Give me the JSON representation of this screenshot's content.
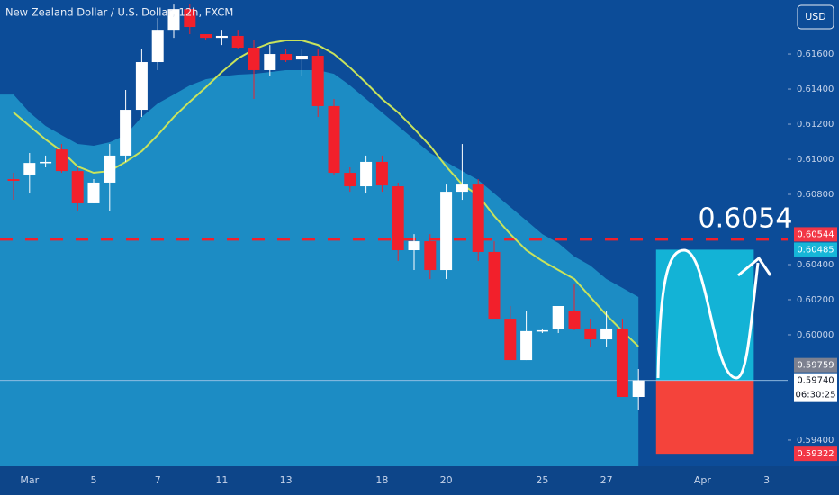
{
  "chart_data": {
    "type": "candlestick",
    "title": "New Zealand Dollar / U.S. Dollar, 12h, FXCM",
    "currency_button": "USD",
    "categories": [
      null,
      "Mar",
      null,
      null,
      null,
      "5",
      null,
      null,
      null,
      "7",
      null,
      null,
      null,
      "11",
      null,
      null,
      null,
      "13",
      null,
      null,
      null,
      null,
      null,
      "18",
      null,
      null,
      null,
      "20",
      null,
      null,
      null,
      null,
      null,
      "25",
      null,
      null,
      null,
      "27",
      null,
      null,
      null,
      null,
      null,
      "Apr",
      null,
      null,
      null,
      "3",
      null
    ],
    "open": [
      0.60887,
      0.60913,
      0.60979,
      0.61056,
      0.60933,
      0.60749,
      0.60867,
      0.61021,
      0.61282,
      0.61554,
      0.61738,
      0.61856,
      0.61713,
      0.61692,
      0.61703,
      0.61636,
      0.61508,
      0.616,
      0.61569,
      0.6159,
      0.61303,
      0.60923,
      0.60846,
      0.60985,
      0.60846,
      0.60482,
      0.60533,
      0.60369,
      0.60815,
      0.60856,
      0.60472,
      0.60092,
      0.59856,
      0.60021,
      0.60031,
      0.60138,
      0.60036,
      0.59974,
      0.60036,
      0.59646,
      null,
      null,
      null,
      null,
      null,
      null,
      null,
      null,
      null
    ],
    "high": [
      0.60923,
      0.61036,
      0.61021,
      0.61087,
      0.60954,
      0.60887,
      0.61087,
      0.61395,
      0.61626,
      0.61805,
      0.61882,
      0.61882,
      0.61713,
      0.61738,
      0.61738,
      0.61677,
      0.61651,
      0.61626,
      0.61626,
      0.61626,
      0.61344,
      0.60954,
      0.61021,
      0.61021,
      0.60867,
      0.60574,
      0.60574,
      0.60856,
      0.61087,
      0.60887,
      0.60533,
      0.60164,
      0.60138,
      0.60036,
      0.60164,
      0.60292,
      0.60092,
      0.60138,
      0.60092,
      0.59805,
      null,
      null,
      null,
      null,
      null,
      null,
      null,
      null,
      null
    ],
    "low": [
      0.60769,
      0.60805,
      0.60954,
      0.60923,
      0.60703,
      0.60749,
      0.60703,
      0.60985,
      0.61241,
      0.61508,
      0.61692,
      0.61713,
      0.61677,
      0.61651,
      0.61626,
      0.61344,
      0.61472,
      0.61554,
      0.61472,
      0.61241,
      0.60913,
      0.60815,
      0.60805,
      0.60815,
      0.60421,
      0.60369,
      0.60318,
      0.60318,
      0.60769,
      0.60421,
      0.60092,
      0.59856,
      0.59856,
      0.6001,
      0.6001,
      0.60026,
      0.59933,
      0.59933,
      0.59646,
      0.59574,
      null,
      null,
      null,
      null,
      null,
      null,
      null,
      null,
      null
    ],
    "close": [
      0.60877,
      0.60979,
      0.60985,
      0.60933,
      0.60749,
      0.60867,
      0.61021,
      0.61282,
      0.61554,
      0.61738,
      0.61856,
      0.61754,
      0.61692,
      0.61703,
      0.61636,
      0.61508,
      0.616,
      0.61564,
      0.6159,
      0.61303,
      0.60923,
      0.60846,
      0.60985,
      0.60851,
      0.60482,
      0.60533,
      0.60369,
      0.60815,
      0.60856,
      0.60472,
      0.60092,
      0.59856,
      0.60021,
      0.60026,
      0.60164,
      0.60031,
      0.59974,
      0.60036,
      0.59646,
      0.5974,
      null,
      null,
      null,
      null,
      null,
      null,
      null,
      null,
      null
    ],
    "up_color": "#ffffff",
    "down_color": "#f2202b",
    "overlays": [
      {
        "kind": "area",
        "color": "#1c8cc4",
        "values": [
          0.61369,
          0.61267,
          0.6119,
          0.61138,
          0.61087,
          0.61077,
          0.61097,
          0.61138,
          0.61241,
          0.61318,
          0.61369,
          0.61421,
          0.61456,
          0.61472,
          0.61482,
          0.61487,
          0.61497,
          0.61508,
          0.61508,
          0.61508,
          0.61487,
          0.61421,
          0.61344,
          0.61267,
          0.6119,
          0.61113,
          0.61036,
          0.60985,
          0.60933,
          0.60882,
          0.60805,
          0.60728,
          0.60651,
          0.60574,
          0.60523,
          0.60446,
          0.60395,
          0.60318,
          0.60267,
          0.60215,
          null,
          null,
          null,
          null,
          null,
          null,
          null,
          null,
          null
        ]
      },
      {
        "kind": "line",
        "color": "#c8e35c",
        "values": [
          0.61267,
          0.6119,
          0.61113,
          0.61046,
          0.60959,
          0.60923,
          0.60933,
          0.60985,
          0.61046,
          0.61138,
          0.61241,
          0.61328,
          0.6141,
          0.61497,
          0.61574,
          0.61626,
          0.61662,
          0.61677,
          0.61677,
          0.61651,
          0.616,
          0.61523,
          0.61436,
          0.61344,
          0.61267,
          0.61174,
          0.61077,
          0.60959,
          0.60856,
          0.60795,
          0.60677,
          0.60574,
          0.60482,
          0.60421,
          0.60369,
          0.60318,
          0.60215,
          0.60113,
          0.60021,
          0.59934,
          null,
          null,
          null,
          null,
          null,
          null,
          null,
          null,
          null
        ]
      }
    ],
    "ylim": [
      0.59251,
      0.61908
    ],
    "yticks": [
      {
        "value": 0.616,
        "label": "0.61600"
      },
      {
        "value": 0.614,
        "label": "0.61400"
      },
      {
        "value": 0.612,
        "label": "0.61200"
      },
      {
        "value": 0.61,
        "label": "0.61000"
      },
      {
        "value": 0.608,
        "label": "0.60800"
      },
      {
        "value": 0.604,
        "label": "0.60400"
      },
      {
        "value": 0.602,
        "label": "0.60200"
      },
      {
        "value": 0.6,
        "label": "0.60000"
      },
      {
        "value": 0.594,
        "label": "0.59400"
      }
    ],
    "level": {
      "value": 0.60544,
      "color": "#f2202b"
    },
    "annotation": "0.6054",
    "position": {
      "entry": 0.5974,
      "target": 0.60485,
      "stop": 0.59322,
      "target_color": "#13b3d6",
      "stop_color": "#f4433b"
    },
    "price_labels": [
      {
        "value": 0.60544,
        "label": "0.60544",
        "color": "#f23645"
      },
      {
        "value": 0.60485,
        "label": "0.60485",
        "color": "#16b6d8"
      },
      {
        "value": 0.59759,
        "label": "0.59759",
        "color": "#7d8190"
      },
      {
        "value": 0.5974,
        "label": "0.59740",
        "color": "#ffffff"
      },
      {
        "value": 0.59322,
        "label": "0.59322",
        "color": "#f23645"
      }
    ],
    "countdown": "06:30:25"
  }
}
